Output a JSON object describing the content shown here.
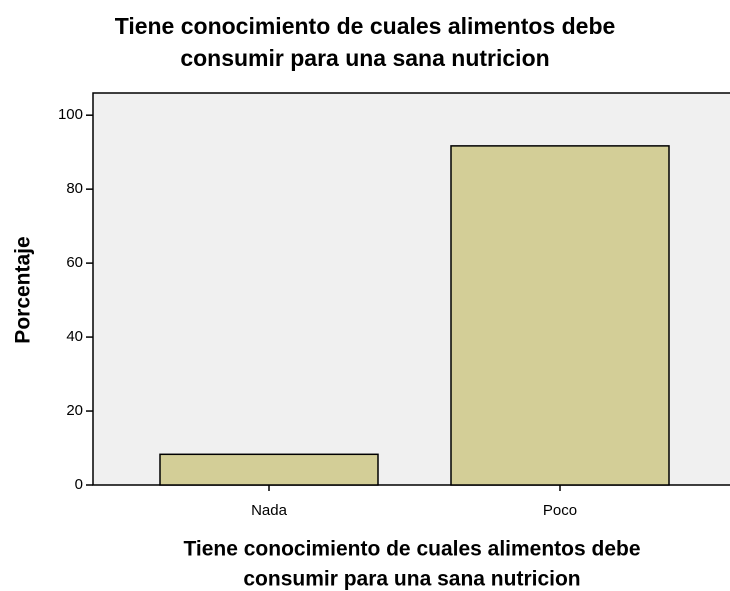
{
  "chart_data": {
    "type": "bar",
    "title": [
      "Tiene conocimiento de cuales alimentos debe",
      "consumir para una sana nutricion"
    ],
    "x_label": [
      "Tiene conocimiento de cuales alimentos debe",
      "consumir para una sana nutricion"
    ],
    "y_label": "Porcentaje",
    "categories": [
      "Nada",
      "Poco"
    ],
    "values": [
      8.3,
      91.7
    ],
    "color": "#d3ce97",
    "ylim": [
      0,
      106
    ],
    "yticks": [
      0,
      20,
      40,
      60,
      80,
      100
    ]
  }
}
